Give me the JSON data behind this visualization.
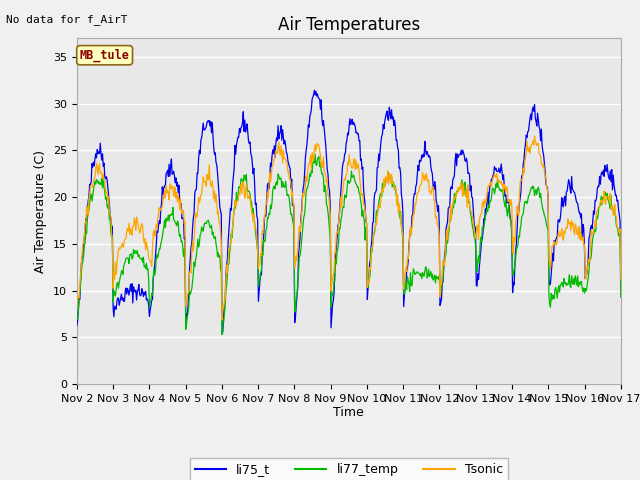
{
  "title": "Air Temperatures",
  "xlabel": "Time",
  "ylabel": "Air Temperature (C)",
  "annotation_top_left": "No data for f_AirT",
  "box_label": "MB_tule",
  "box_label_color": "#8B0000",
  "box_bg_color": "#FFFFC0",
  "box_border_color": "#8B6914",
  "ylim": [
    0,
    37
  ],
  "yticks": [
    0,
    5,
    10,
    15,
    20,
    25,
    30,
    35
  ],
  "xtick_labels": [
    "Nov 2",
    "Nov 3",
    "Nov 4",
    "Nov 5",
    "Nov 6",
    "Nov 7",
    "Nov 8",
    "Nov 9",
    "Nov 10",
    "Nov 11",
    "Nov 12",
    "Nov 13",
    "Nov 14",
    "Nov 15",
    "Nov 16",
    "Nov 17"
  ],
  "colors": {
    "li75_t": "#0000EE",
    "li77_temp": "#00BB00",
    "Tsonic": "#FFA500"
  },
  "legend_labels": [
    "li75_t",
    "li77_temp",
    "Tsonic"
  ],
  "fig_bg_color": "#F0F0F0",
  "plot_bg_color": "#E8E8E8",
  "grid_color": "#FFFFFF",
  "title_fontsize": 12,
  "axis_label_fontsize": 9,
  "tick_fontsize": 8,
  "legend_fontsize": 9
}
